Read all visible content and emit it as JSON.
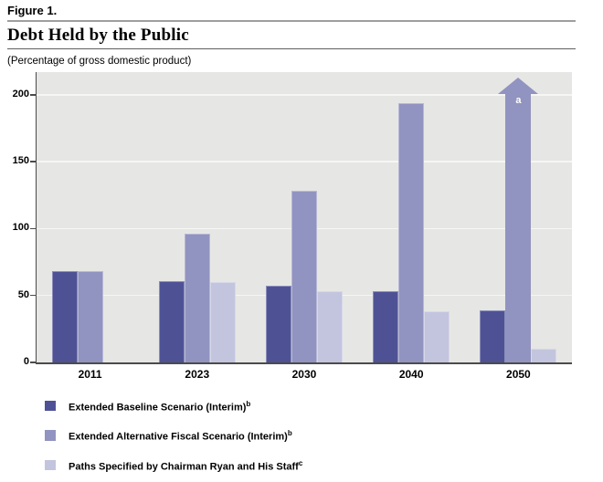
{
  "chart_data": {
    "type": "bar",
    "figure_label": "Figure 1.",
    "title": "Debt Held by the Public",
    "subtitle": "(Percentage of gross domestic product)",
    "categories": [
      "2011",
      "2023",
      "2030",
      "2040",
      "2050"
    ],
    "series": [
      {
        "key": "baseline",
        "name": "Extended Baseline Scenario (Interim)",
        "superscript": "b",
        "color": "#4e5295",
        "values": [
          68,
          61,
          57,
          53,
          39
        ]
      },
      {
        "key": "alternative",
        "name": "Extended Alternative Fiscal Scenario (Interim)",
        "superscript": "b",
        "color": "#9193c0",
        "values": [
          68,
          96,
          128,
          194,
          null
        ]
      },
      {
        "key": "ryan",
        "name": "Paths Specified by Chairman Ryan and His Staff",
        "superscript": "c",
        "color": "#c3c4de",
        "values": [
          null,
          60,
          53,
          38,
          10
        ]
      }
    ],
    "arrow": {
      "series_key": "alternative",
      "category": "2050",
      "label": "a",
      "meaning": "value continues above top of axis"
    },
    "y_ticks": [
      0,
      50,
      100,
      150,
      200
    ],
    "ylim": [
      0,
      217
    ],
    "grid": true,
    "legend_position": "bottom-left",
    "colors": {
      "plot_background": "#e6e6e4",
      "gridline": "#f6f6f4",
      "axis": "#4b4b4b",
      "text": "#000000"
    }
  }
}
